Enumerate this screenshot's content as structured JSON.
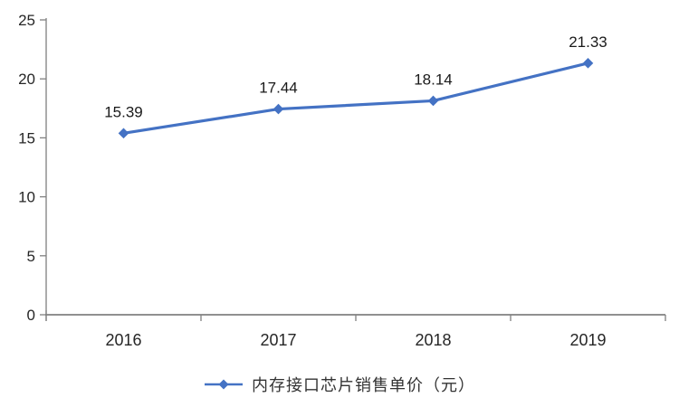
{
  "chart_data": {
    "type": "line",
    "title": "",
    "xlabel": "",
    "ylabel": "",
    "categories": [
      "2016",
      "2017",
      "2018",
      "2019"
    ],
    "series": [
      {
        "name": "内存接口芯片销售单价（元）",
        "values": [
          15.39,
          17.44,
          18.14,
          21.33
        ]
      }
    ],
    "data_labels": [
      "15.39",
      "17.44",
      "18.14",
      "21.33"
    ],
    "legend": "内存接口芯片销售单价（元）",
    "legend_position": "bottom",
    "marker": "diamond",
    "grid": false,
    "ylim": [
      0,
      25
    ],
    "yticks": [
      0,
      5,
      10,
      15,
      20,
      25
    ],
    "line_color": "#4472C4",
    "axis_color": "#808080",
    "label_color": "#262626",
    "background_color": "#FFFFFF"
  }
}
